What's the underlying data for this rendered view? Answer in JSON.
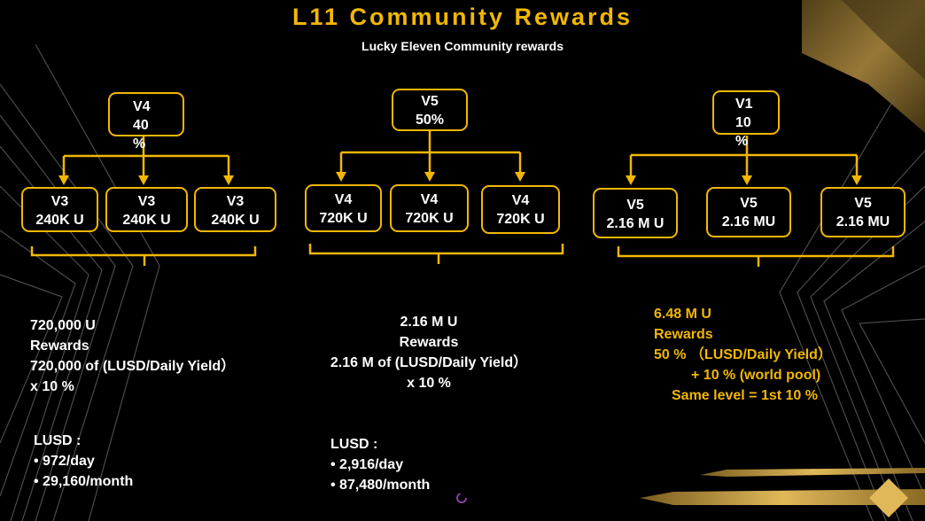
{
  "title": "L11 Community Rewards",
  "subtitle": "Lucky Eleven Community rewards",
  "groups": [
    {
      "top": {
        "line1": "V4",
        "line2": "40",
        "line3": "%"
      },
      "children": [
        {
          "line1": "V3",
          "line2": "240K U"
        },
        {
          "line1": "V3",
          "line2": "240K U"
        },
        {
          "line1": "V3",
          "line2": "240K U"
        }
      ],
      "summary": [
        "720,000 U",
        "Rewards",
        "720,000 of (LUSD/Daily Yield）",
        "x 10 %"
      ],
      "lusd_label": "LUSD :",
      "lusd_items": [
        "• 972/day",
        "• 29,160/month"
      ]
    },
    {
      "top": {
        "line1": "V5",
        "line2": "50%"
      },
      "children": [
        {
          "line1": "V4",
          "line2": "720K U"
        },
        {
          "line1": "V4",
          "line2": "720K U"
        },
        {
          "line1": "V4",
          "line2": "720K U"
        }
      ],
      "summary": [
        "2.16 M U",
        "Rewards",
        "2.16 M of (LUSD/Daily Yield）",
        "x 10 %"
      ],
      "lusd_label": "LUSD :",
      "lusd_items": [
        "• 2,916/day",
        "• 87,480/month"
      ]
    },
    {
      "top": {
        "line1": "V1",
        "line2": "10",
        "line3": "%"
      },
      "children": [
        {
          "line1": "V5",
          "line2": "2.16 M U"
        },
        {
          "line1": "V5",
          "line2": "2.16 MU"
        },
        {
          "line1": "V5",
          "line2": "2.16 MU"
        }
      ],
      "summary": [
        "6.48 M U",
        "Rewards",
        "50 %  （LUSD/Daily Yield）",
        "+ 10 % (world pool)",
        "Same level = 1st 10 %"
      ]
    }
  ],
  "colors": {
    "accent": "#f2b705",
    "background": "#000000",
    "text": "#ffffff"
  }
}
